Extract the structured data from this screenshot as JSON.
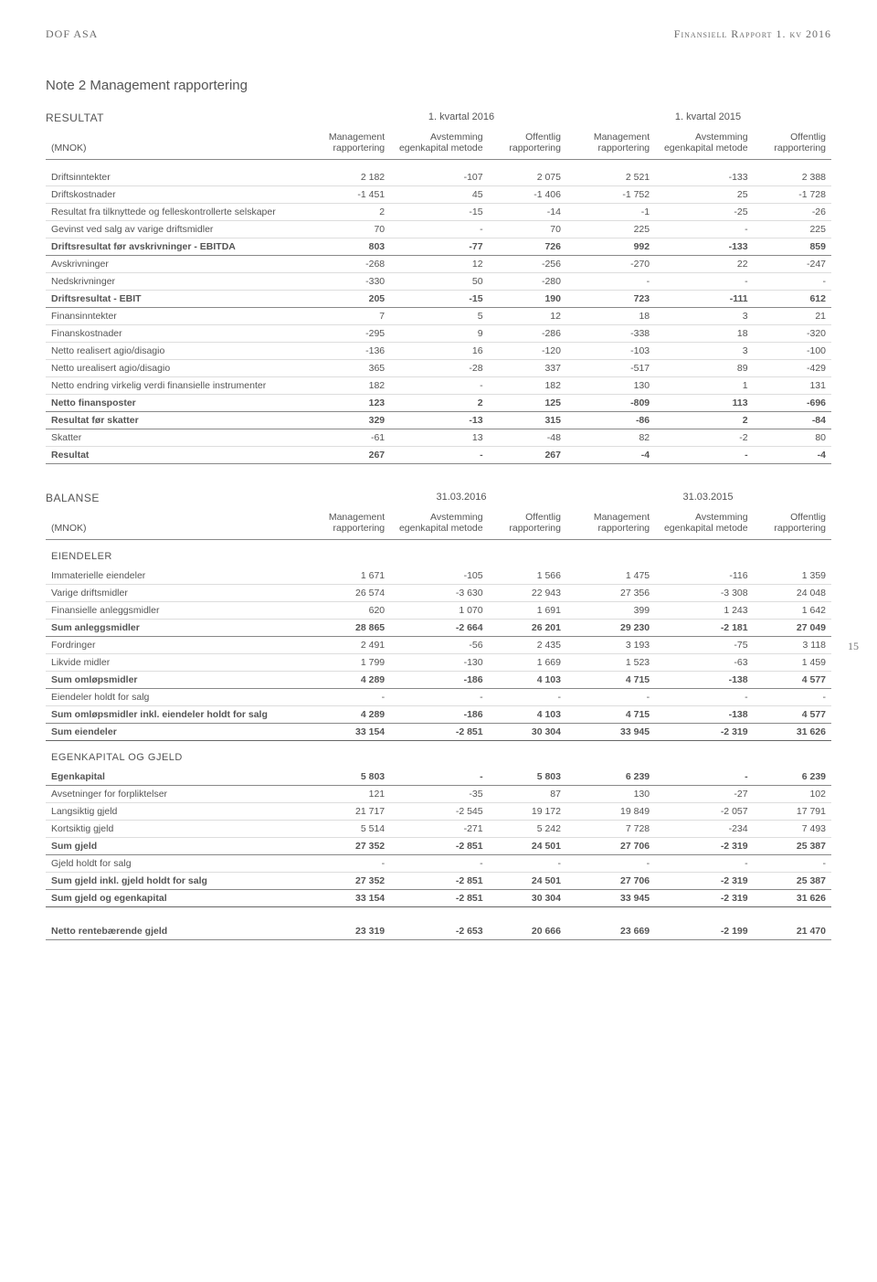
{
  "header": {
    "left": "DOF ASA",
    "right": "Finansiell Rapport 1. kv 2016"
  },
  "noteTitle": "Note 2  Management rapportering",
  "resultat": {
    "label": "RESULTAT",
    "period1": "1. kvartal 2016",
    "period2": "1. kvartal 2015",
    "unitLabel": "(MNOK)",
    "columns": [
      "Management rapportering",
      "Avstemming egenkapital metode",
      "Offentlig rapportering",
      "Management rapportering",
      "Avstemming egenkapital metode",
      "Offentlig rapportering"
    ],
    "rows": [
      {
        "l": "Driftsinntekter",
        "v": [
          "2 182",
          "-107",
          "2 075",
          "2 521",
          "-133",
          "2 388"
        ]
      },
      {
        "l": "Driftskostnader",
        "v": [
          "-1 451",
          "45",
          "-1 406",
          "-1 752",
          "25",
          "-1 728"
        ]
      },
      {
        "l": "Resultat fra tilknyttede og felleskontrollerte selskaper",
        "v": [
          "2",
          "-15",
          "-14",
          "-1",
          "-25",
          "-26"
        ]
      },
      {
        "l": "Gevinst ved salg av varige driftsmidler",
        "v": [
          "70",
          "-",
          "70",
          "225",
          "-",
          "225"
        ]
      },
      {
        "l": "Driftsresultat før avskrivninger - EBITDA",
        "v": [
          "803",
          "-77",
          "726",
          "992",
          "-133",
          "859"
        ],
        "style": "bold medium"
      },
      {
        "l": "Avskrivninger",
        "v": [
          "-268",
          "12",
          "-256",
          "-270",
          "22",
          "-247"
        ]
      },
      {
        "l": "Nedskrivninger",
        "v": [
          "-330",
          "50",
          "-280",
          "-",
          "-",
          "-"
        ]
      },
      {
        "l": "Driftsresultat - EBIT",
        "v": [
          "205",
          "-15",
          "190",
          "723",
          "-111",
          "612"
        ],
        "style": "bold medium"
      },
      {
        "l": "Finansinntekter",
        "v": [
          "7",
          "5",
          "12",
          "18",
          "3",
          "21"
        ]
      },
      {
        "l": "Finanskostnader",
        "v": [
          "-295",
          "9",
          "-286",
          "-338",
          "18",
          "-320"
        ]
      },
      {
        "l": "Netto realisert agio/disagio",
        "v": [
          "-136",
          "16",
          "-120",
          "-103",
          "3",
          "-100"
        ]
      },
      {
        "l": "Netto urealisert agio/disagio",
        "v": [
          "365",
          "-28",
          "337",
          "-517",
          "89",
          "-429"
        ]
      },
      {
        "l": "Netto endring virkelig verdi finansielle instrumenter",
        "v": [
          "182",
          "-",
          "182",
          "130",
          "1",
          "131"
        ]
      },
      {
        "l": "Netto finansposter",
        "v": [
          "123",
          "2",
          "125",
          "-809",
          "113",
          "-696"
        ],
        "style": "bold medium"
      },
      {
        "l": "Resultat før skatter",
        "v": [
          "329",
          "-13",
          "315",
          "-86",
          "2",
          "-84"
        ],
        "style": "bold medium"
      },
      {
        "l": "Skatter",
        "v": [
          "-61",
          "13",
          "-48",
          "82",
          "-2",
          "80"
        ]
      },
      {
        "l": "Resultat",
        "v": [
          "267",
          "-",
          "267",
          "-4",
          "-",
          "-4"
        ],
        "style": "bold medium"
      }
    ]
  },
  "balanse": {
    "label": "BALANSE",
    "period1": "31.03.2016",
    "period2": "31.03.2015",
    "unitLabel": "(MNOK)",
    "columns": [
      "Management rapportering",
      "Avstemming egenkapital metode",
      "Offentlig rapportering",
      "Management rapportering",
      "Avstemming egenkapital metode",
      "Offentlig rapportering"
    ],
    "sections": [
      {
        "title": "EIENDELER",
        "rows": [
          {
            "l": "Immaterielle eiendeler",
            "v": [
              "1 671",
              "-105",
              "1 566",
              "1 475",
              "-116",
              "1 359"
            ]
          },
          {
            "l": "Varige driftsmidler",
            "v": [
              "26 574",
              "-3 630",
              "22 943",
              "27 356",
              "-3 308",
              "24 048"
            ]
          },
          {
            "l": "Finansielle anleggsmidler",
            "v": [
              "620",
              "1 070",
              "1 691",
              "399",
              "1 243",
              "1 642"
            ]
          },
          {
            "l": "Sum anleggsmidler",
            "v": [
              "28 865",
              "-2 664",
              "26 201",
              "29 230",
              "-2 181",
              "27 049"
            ],
            "style": "bold medium"
          },
          {
            "l": "Fordringer",
            "v": [
              "2 491",
              "-56",
              "2 435",
              "3 193",
              "-75",
              "3 118"
            ]
          },
          {
            "l": "Likvide midler",
            "v": [
              "1 799",
              "-130",
              "1 669",
              "1 523",
              "-63",
              "1 459"
            ]
          },
          {
            "l": "Sum omløpsmidler",
            "v": [
              "4 289",
              "-186",
              "4 103",
              "4 715",
              "-138",
              "4 577"
            ],
            "style": "bold medium"
          },
          {
            "l": "Eiendeler holdt for salg",
            "v": [
              "-",
              "-",
              "-",
              "-",
              "-",
              "-"
            ]
          },
          {
            "l": "Sum omløpsmidler inkl. eiendeler holdt for salg",
            "v": [
              "4 289",
              "-186",
              "4 103",
              "4 715",
              "-138",
              "4 577"
            ],
            "style": "bold medium"
          },
          {
            "l": "Sum eiendeler",
            "v": [
              "33 154",
              "-2 851",
              "30 304",
              "33 945",
              "-2 319",
              "31 626"
            ],
            "style": "bold heavy"
          }
        ]
      },
      {
        "title": "EGENKAPITAL OG GJELD",
        "rows": [
          {
            "l": "Egenkapital",
            "v": [
              "5 803",
              "-",
              "5 803",
              "6 239",
              "-",
              "6 239"
            ],
            "style": "bold medium"
          },
          {
            "l": "Avsetninger for forpliktelser",
            "v": [
              "121",
              "-35",
              "87",
              "130",
              "-27",
              "102"
            ]
          },
          {
            "l": "Langsiktig gjeld",
            "v": [
              "21 717",
              "-2 545",
              "19 172",
              "19 849",
              "-2 057",
              "17 791"
            ]
          },
          {
            "l": "Kortsiktig gjeld",
            "v": [
              "5 514",
              "-271",
              "5 242",
              "7 728",
              "-234",
              "7 493"
            ]
          },
          {
            "l": "Sum gjeld",
            "v": [
              "27 352",
              "-2 851",
              "24 501",
              "27 706",
              "-2 319",
              "25 387"
            ],
            "style": "bold medium"
          },
          {
            "l": "Gjeld holdt for salg",
            "v": [
              "-",
              "-",
              "-",
              "-",
              "-",
              "-"
            ]
          },
          {
            "l": "Sum gjeld inkl. gjeld holdt for salg",
            "v": [
              "27 352",
              "-2 851",
              "24 501",
              "27 706",
              "-2 319",
              "25 387"
            ],
            "style": "bold medium"
          },
          {
            "l": "Sum gjeld og egenkapital",
            "v": [
              "33 154",
              "-2 851",
              "30 304",
              "33 945",
              "-2 319",
              "31 626"
            ],
            "style": "bold heavy"
          }
        ]
      }
    ],
    "netDebt": {
      "l": "Netto rentebærende gjeld",
      "v": [
        "23 319",
        "-2 653",
        "20 666",
        "23 669",
        "-2 199",
        "21 470"
      ],
      "style": "bold medium"
    }
  },
  "pageNumber": "15"
}
